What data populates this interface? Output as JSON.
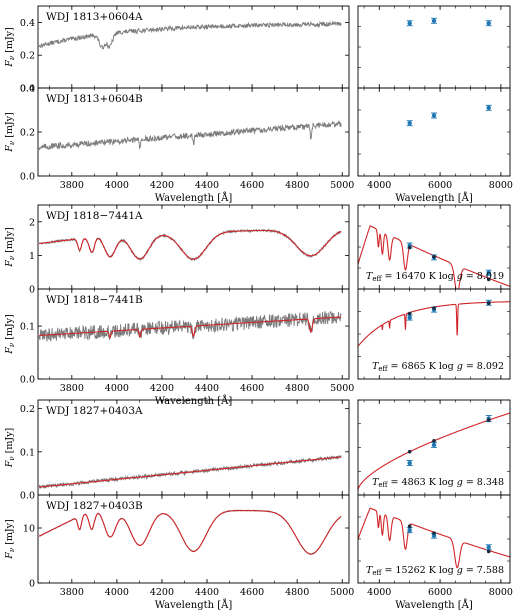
{
  "figure": {
    "xlabel": "Wavelength [Å]",
    "ylabel": "F_ν [mJy]"
  },
  "chart_data": [
    {
      "type": "line",
      "role": "spectrum",
      "row": 0,
      "sub": 0,
      "title": "WDJ 1813+0604A",
      "ylabel": "F_ν [mJy]",
      "ylabel_unit": "[mJy]",
      "xlim": [
        3650,
        5030
      ],
      "ylim": [
        0.0,
        0.5
      ],
      "yticks": [
        "0.0",
        "0.2",
        "0.4"
      ],
      "xticks": [],
      "series": [
        {
          "name": "",
          "profile": "coolDA_A",
          "start": 0.255,
          "end": 0.39,
          "noise": 0.012,
          "lines": [
            [
              3934,
              0.08,
              12
            ],
            [
              3968,
              0.08,
              12
            ]
          ]
        }
      ],
      "model": false
    },
    {
      "type": "scatter",
      "role": "phot",
      "row": 0,
      "sub": 0,
      "xlim": [
        3300,
        8300
      ],
      "ylim": [
        0.0,
        0.5
      ],
      "points": [
        {
          "x": 5000,
          "y": 0.395,
          "err": 0.008
        },
        {
          "x": 5800,
          "y": 0.41,
          "err": 0.008
        },
        {
          "x": 7600,
          "y": 0.395,
          "err": 0.008
        }
      ],
      "model": null
    },
    {
      "type": "line",
      "role": "spectrum",
      "row": 0,
      "sub": 1,
      "title": "WDJ 1813+0604B",
      "ylabel": "F_ν [mJy]",
      "ylabel_unit": "[mJy]",
      "xlim": [
        3650,
        5030
      ],
      "ylim": [
        0.0,
        0.4
      ],
      "yticks": [
        "0.0",
        "0.2",
        "0.4"
      ],
      "xticks": [
        "3800",
        "4000",
        "4200",
        "4400",
        "4600",
        "4800",
        "5000"
      ],
      "series": [
        {
          "name": "",
          "profile": "linear",
          "start": 0.13,
          "end": 0.24,
          "noise": 0.012,
          "lines": [
            [
              4102,
              0.03,
              3
            ],
            [
              4340,
              0.04,
              3
            ],
            [
              4861,
              0.06,
              3
            ]
          ]
        }
      ],
      "model": false
    },
    {
      "type": "scatter",
      "role": "phot",
      "row": 0,
      "sub": 1,
      "xlim": [
        3300,
        8300
      ],
      "ylim": [
        0.0,
        0.4
      ],
      "xticks": [
        "4000",
        "6000",
        "8000"
      ],
      "points": [
        {
          "x": 5000,
          "y": 0.24,
          "err": 0.008
        },
        {
          "x": 5800,
          "y": 0.275,
          "err": 0.008
        },
        {
          "x": 7600,
          "y": 0.31,
          "err": 0.008
        }
      ],
      "model": null
    },
    {
      "type": "line",
      "role": "spectrum",
      "row": 1,
      "sub": 0,
      "title": "WDJ 1818−7441A",
      "ylabel": "F_ν [mJy]",
      "ylabel_unit": "[mJy]",
      "xlim": [
        3650,
        5030
      ],
      "ylim": [
        0.0,
        2.5
      ],
      "yticks": [
        "0",
        "1",
        "2"
      ],
      "xticks": [],
      "series": [
        {
          "name": "",
          "profile": "hotDA",
          "cont_start": 1.55,
          "cont_end": 1.82,
          "blue_start": 1.35,
          "noise": 0.03,
          "lines": [
            [
              3835,
              0.35,
              8
            ],
            [
              3889,
              0.45,
              12
            ],
            [
              3970,
              0.65,
              25
            ],
            [
              4102,
              0.75,
              40
            ],
            [
              4340,
              0.8,
              55
            ],
            [
              4861,
              0.8,
              65
            ]
          ]
        }
      ],
      "model": true
    },
    {
      "type": "line",
      "role": "phot",
      "row": 1,
      "sub": 0,
      "xlim": [
        3300,
        8300
      ],
      "ylim": [
        0.6,
        2.3
      ],
      "points": [
        {
          "x": 5000,
          "y": 1.48,
          "err": 0.03
        },
        {
          "x": 5800,
          "y": 1.24,
          "err": 0.03
        },
        {
          "x": 7600,
          "y": 0.93,
          "err": 0.03
        }
      ],
      "model": {
        "kind": "hot",
        "peak": 2.0,
        "slope": 1.0,
        "lines": [
          [
            3970,
            0.35,
            25
          ],
          [
            4102,
            0.45,
            35
          ],
          [
            4340,
            0.5,
            50
          ],
          [
            4861,
            0.55,
            60
          ],
          [
            6563,
            0.55,
            80
          ]
        ]
      },
      "annotation": "T_eff = 16470 K  log g = 8.019"
    },
    {
      "type": "line",
      "role": "spectrum",
      "row": 1,
      "sub": 1,
      "title": "WDJ 1818−7441B",
      "ylabel": "F_ν [mJy]",
      "ylabel_unit": "[mJy]",
      "xlim": [
        3650,
        5030
      ],
      "ylim": [
        0.0,
        0.17
      ],
      "yticks": [
        "0.0",
        "0.1"
      ],
      "xticks": [
        "3800",
        "4000",
        "4200",
        "4400",
        "4600",
        "4800",
        "5000"
      ],
      "series": [
        {
          "name": "",
          "profile": "linear",
          "start": 0.082,
          "end": 0.118,
          "noise": 0.012,
          "lines": [
            [
              3970,
              0.012,
              4
            ],
            [
              4102,
              0.015,
              4
            ],
            [
              4340,
              0.02,
              5
            ],
            [
              4861,
              0.025,
              6
            ]
          ]
        }
      ],
      "model": true
    },
    {
      "type": "line",
      "role": "phot",
      "row": 1,
      "sub": 1,
      "xlim": [
        3300,
        8300
      ],
      "ylim": [
        0.0,
        0.17
      ],
      "points": [
        {
          "x": 5000,
          "y": 0.116,
          "err": 0.003
        },
        {
          "x": 5800,
          "y": 0.131,
          "err": 0.003
        },
        {
          "x": 7600,
          "y": 0.144,
          "err": 0.003
        }
      ],
      "model": {
        "kind": "warm",
        "lo": 0.062,
        "hi": 0.146,
        "lines": [
          [
            4102,
            0.01,
            8
          ],
          [
            4340,
            0.015,
            10
          ],
          [
            4861,
            0.03,
            12
          ],
          [
            6563,
            0.06,
            15
          ]
        ]
      },
      "annotation": "T_eff = 6865 K  log g = 8.092"
    },
    {
      "type": "line",
      "role": "spectrum",
      "row": 2,
      "sub": 0,
      "title": "WDJ 1827+0403A",
      "ylabel": "F_ν [mJy]",
      "ylabel_unit": "[mJy]",
      "xlim": [
        3650,
        5030
      ],
      "ylim": [
        0.0,
        0.22
      ],
      "yticks": [
        "0.0",
        "0.1",
        "0.2"
      ],
      "xticks": [],
      "series": [
        {
          "name": "",
          "profile": "linear",
          "start": 0.018,
          "end": 0.09,
          "noise": 0.004,
          "lines": []
        }
      ],
      "model": true
    },
    {
      "type": "line",
      "role": "phot",
      "row": 2,
      "sub": 0,
      "xlim": [
        3300,
        8300
      ],
      "ylim": [
        0.0,
        0.22
      ],
      "points": [
        {
          "x": 5000,
          "y": 0.074,
          "err": 0.005
        },
        {
          "x": 5800,
          "y": 0.116,
          "err": 0.004
        },
        {
          "x": 7600,
          "y": 0.177,
          "err": 0.007
        }
      ],
      "model": {
        "kind": "cool",
        "lo": 0.012,
        "hi": 0.19
      },
      "annotation": "T_eff = 4863 K  log g = 8.348"
    },
    {
      "type": "line",
      "role": "spectrum",
      "row": 2,
      "sub": 1,
      "title": "WDJ 1827+0403B",
      "ylabel": "F_ν [mJy]",
      "ylabel_unit": "[mJy]",
      "xlim": [
        3650,
        5030
      ],
      "ylim": [
        0.0,
        16
      ],
      "yticks": [
        "0",
        "10"
      ],
      "xticks": [
        "3800",
        "4000",
        "4200",
        "4400",
        "4600",
        "4800",
        "5000"
      ],
      "series": [
        {
          "name": "",
          "profile": "hotDA",
          "cont_start": 13.5,
          "cont_end": 13.0,
          "blue_start": 8.4,
          "noise": 0.08,
          "lines": [
            [
              3835,
              2.5,
              8
            ],
            [
              3889,
              3.5,
              12
            ],
            [
              3970,
              5.0,
              25
            ],
            [
              4102,
              6.5,
              42
            ],
            [
              4340,
              7.5,
              55
            ],
            [
              4861,
              7.8,
              65
            ]
          ]
        }
      ],
      "model": true
    },
    {
      "type": "line",
      "role": "phot",
      "row": 2,
      "sub": 1,
      "xlim": [
        3300,
        8300
      ],
      "ylim": [
        0.0,
        16
      ],
      "xticks": [
        "4000",
        "6000",
        "8000"
      ],
      "points": [
        {
          "x": 5000,
          "y": 9.6,
          "err": 0.2
        },
        {
          "x": 5800,
          "y": 8.6,
          "err": 0.2
        },
        {
          "x": 7600,
          "y": 6.5,
          "err": 0.2
        }
      ],
      "model": {
        "kind": "hot",
        "peak": 14.5,
        "slope": 1.0,
        "lines": [
          [
            3970,
            3.0,
            25
          ],
          [
            4102,
            4.0,
            35
          ],
          [
            4340,
            4.5,
            50
          ],
          [
            4861,
            5.0,
            60
          ],
          [
            6563,
            5.0,
            80
          ]
        ]
      },
      "annotation": "T_eff = 15262 K  log g = 7.588"
    }
  ],
  "colors": {
    "spectrum": "#7b7b7b",
    "model": "#d0262a",
    "photometry_point": "#1f77b4",
    "model_synthetic": "#1b2a3a"
  }
}
